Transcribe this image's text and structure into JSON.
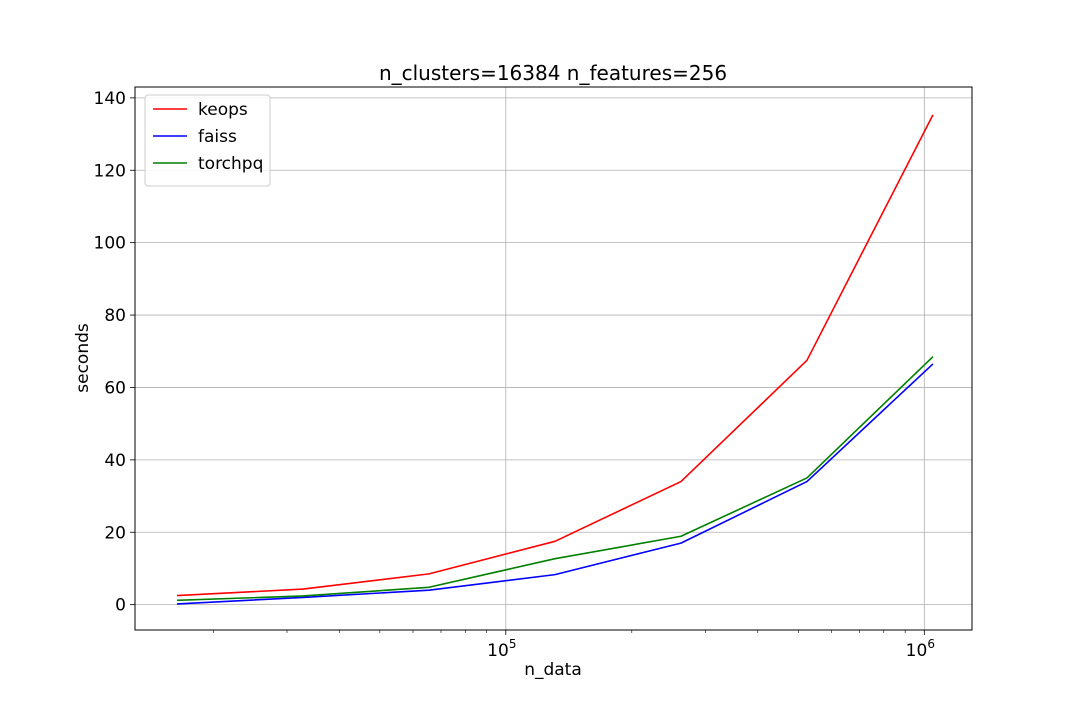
{
  "chart_data": {
    "type": "line",
    "title": "n_clusters=16384 n_features=256",
    "xlabel": "n_data",
    "ylabel": "seconds",
    "xscale": "log",
    "xlim": [
      13000,
      1300000
    ],
    "ylim": [
      -7,
      143
    ],
    "x": [
      16384,
      32768,
      65536,
      131072,
      262144,
      524288,
      1048576
    ],
    "x_ticks": [
      {
        "value": 100000,
        "base": "10",
        "exp": "5"
      },
      {
        "value": 1000000,
        "base": "10",
        "exp": "6"
      }
    ],
    "y_ticks": [
      0,
      20,
      40,
      60,
      80,
      100,
      120,
      140
    ],
    "grid": true,
    "legend_position": "upper-left",
    "series": [
      {
        "name": "keops",
        "color": "#ff0000",
        "values": [
          2.5,
          4.3,
          8.5,
          17.5,
          34.0,
          67.5,
          135.3
        ]
      },
      {
        "name": "faiss",
        "color": "#0000ff",
        "values": [
          0.2,
          2.0,
          4.0,
          8.3,
          17.0,
          34.0,
          66.5
        ]
      },
      {
        "name": "torchpq",
        "color": "#008000",
        "values": [
          1.2,
          2.4,
          4.8,
          12.7,
          18.9,
          35.0,
          68.5
        ]
      }
    ]
  }
}
